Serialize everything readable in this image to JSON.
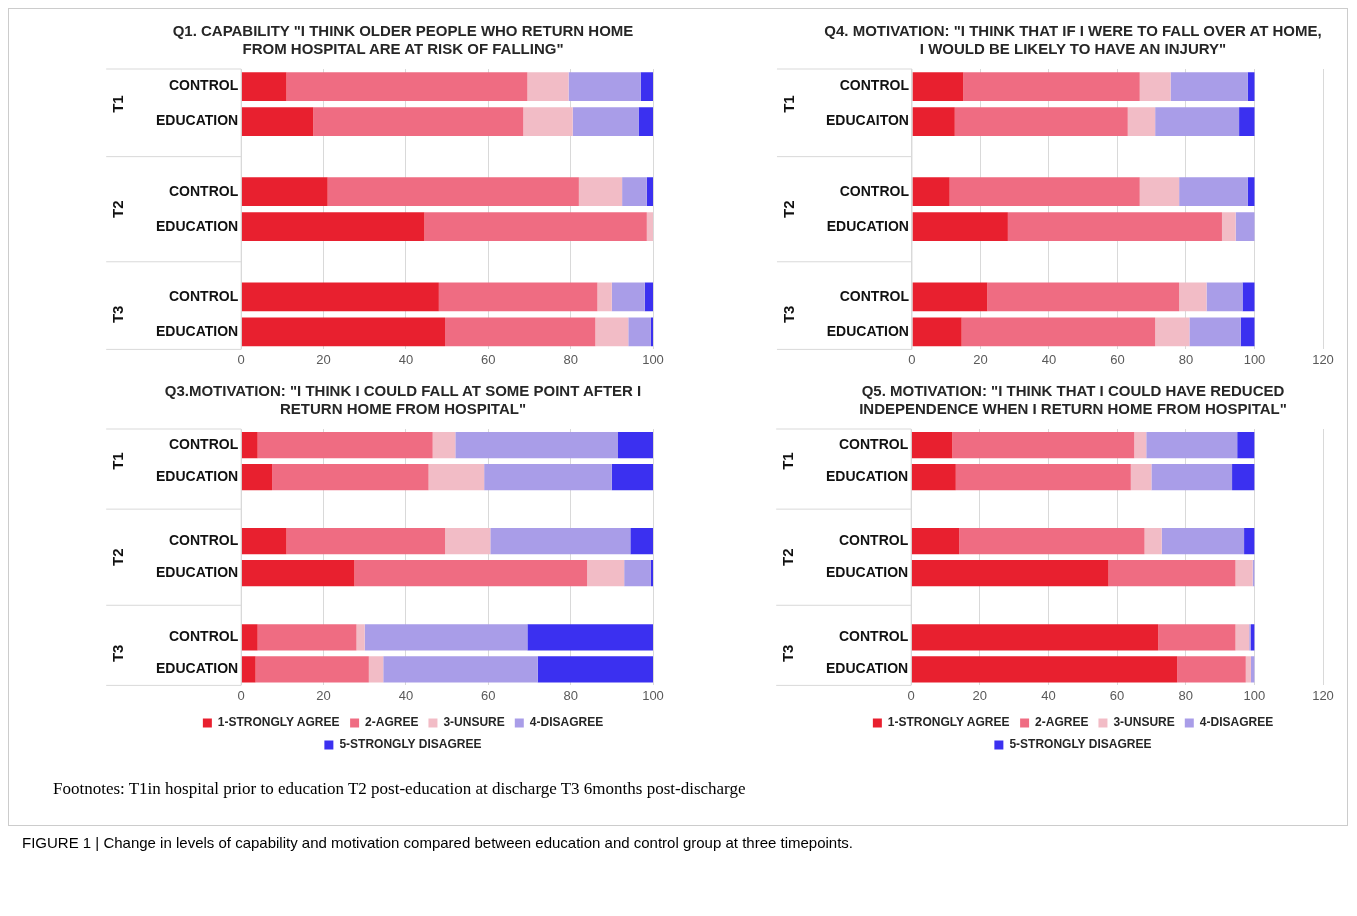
{
  "chart_data": [
    {
      "type": "bar",
      "orientation": "horizontal",
      "stacked": true,
      "title": "Q1. CAPABILITY \"I THINK OLDER PEOPLE WHO RETURN HOME FROM HOSPITAL ARE AT RISK OF FALLING\"",
      "categories": [
        "CONTROL",
        "EDUCATION",
        null,
        "CONTROL",
        "EDUCATION",
        null,
        "CONTROL",
        "EDUCATION"
      ],
      "xlim": [
        0,
        100
      ],
      "xticks": [
        0,
        20,
        40,
        60,
        80,
        100
      ],
      "grid": "x",
      "legend": false,
      "annotations": [
        "T1",
        "T2",
        "T3"
      ],
      "series": [
        {
          "color": "#e8202f",
          "values": [
            11,
            17.5,
            null,
            21,
            44.5,
            null,
            48,
            49.5
          ]
        },
        {
          "color": "#ef6c82",
          "values": [
            58.5,
            51,
            null,
            61,
            54,
            null,
            38.5,
            36.5
          ]
        },
        {
          "color": "#f2bcc6",
          "values": [
            10,
            12,
            null,
            10.5,
            1.5,
            null,
            3.5,
            8
          ]
        },
        {
          "color": "#a99de8",
          "values": [
            17.5,
            16,
            null,
            6,
            0,
            null,
            8,
            5.5
          ]
        },
        {
          "color": "#3b30f0",
          "values": [
            3,
            3.5,
            null,
            1.5,
            0,
            null,
            2,
            0.5
          ]
        }
      ]
    },
    {
      "type": "bar",
      "orientation": "horizontal",
      "stacked": true,
      "title": "Q4. MOTIVATION: \"I THINK THAT IF I WERE TO FALL OVER AT HOME, I WOULD BE LIKELY TO HAVE AN INJURY\"",
      "categories": [
        "CONTROL",
        "EDUCAITON",
        null,
        "CONTROL",
        "EDUCATION",
        null,
        "CONTROL",
        "EDUCATION"
      ],
      "xlim": [
        0,
        120
      ],
      "xticks": [
        0,
        20,
        40,
        60,
        80,
        100,
        120
      ],
      "grid": "x",
      "legend": false,
      "annotations": [
        "T1",
        "T2",
        "T3"
      ],
      "series": [
        {
          "color": "#e8202f",
          "values": [
            15,
            12.5,
            null,
            11,
            28,
            null,
            22,
            14.5
          ]
        },
        {
          "color": "#ef6c82",
          "values": [
            51.5,
            50.5,
            null,
            55.5,
            62.5,
            null,
            56,
            56.5
          ]
        },
        {
          "color": "#f2bcc6",
          "values": [
            9,
            8,
            null,
            11.5,
            4,
            null,
            8,
            10
          ]
        },
        {
          "color": "#a99de8",
          "values": [
            22.5,
            24.5,
            null,
            20,
            5.5,
            null,
            10.5,
            15
          ]
        },
        {
          "color": "#3b30f0",
          "values": [
            2,
            4.5,
            null,
            2,
            0,
            null,
            3.5,
            4
          ]
        }
      ]
    },
    {
      "type": "bar",
      "orientation": "horizontal",
      "stacked": true,
      "title": "Q3.MOTIVATION: \"I THINK I COULD FALL AT SOME POINT AFTER I RETURN HOME FROM HOSPITAL\"",
      "categories": [
        "CONTROL",
        "EDUCATION",
        null,
        "CONTROL",
        "EDUCATION",
        null,
        "CONTROL",
        "EDUCATION"
      ],
      "xlim": [
        0,
        100
      ],
      "xticks": [
        0,
        20,
        40,
        60,
        80,
        100
      ],
      "grid": "x",
      "legend": "bottom",
      "annotations": [
        "T1",
        "T2",
        "T3"
      ],
      "series": [
        {
          "name": "1-STRONGLY AGREE",
          "color": "#e8202f",
          "values": [
            4,
            7.5,
            null,
            11,
            27.5,
            null,
            4,
            3.5
          ]
        },
        {
          "name": "2-AGREE",
          "color": "#ef6c82",
          "values": [
            42.5,
            38,
            null,
            38.5,
            56.5,
            null,
            24,
            27.5
          ]
        },
        {
          "name": "3-UNSURE",
          "color": "#f2bcc6",
          "values": [
            5.5,
            13.5,
            null,
            11,
            9,
            null,
            2,
            3.5
          ]
        },
        {
          "name": "4-DISAGREE",
          "color": "#a99de8",
          "values": [
            39.5,
            31,
            null,
            34,
            6.5,
            null,
            39.5,
            37.5
          ]
        },
        {
          "name": "5-STRONGLY DISAGREE",
          "color": "#3b30f0",
          "values": [
            8.5,
            10,
            null,
            5.5,
            0.5,
            null,
            30.5,
            28
          ]
        }
      ]
    },
    {
      "type": "bar",
      "orientation": "horizontal",
      "stacked": true,
      "title": "Q5. MOTIVATION: \"I THINK THAT I COULD HAVE REDUCED INDEPENDENCE WHEN I RETURN HOME FROM HOSPITAL\"",
      "categories": [
        "CONTROL",
        "EDUCATION",
        null,
        "CONTROL",
        "EDUCATION",
        null,
        "CONTROL",
        "EDUCATION"
      ],
      "xlim": [
        0,
        120
      ],
      "xticks": [
        0,
        20,
        40,
        60,
        80,
        100,
        120
      ],
      "grid": "x",
      "legend": "bottom",
      "annotations": [
        "T1",
        "T2",
        "T3",
        "Footnotes: T1in hospital prior to education T2 post-education at discharge T3 6months post-discharge",
        "FIGURE 1 | Change in levels of capability and motivation compared between education and control group at three timepoints."
      ],
      "series": [
        {
          "name": "1-STRONGLY AGREE",
          "color": "#e8202f",
          "values": [
            12,
            13,
            null,
            14,
            57.5,
            null,
            72,
            77.5
          ]
        },
        {
          "name": "2-AGREE",
          "color": "#ef6c82",
          "values": [
            53,
            51,
            null,
            54,
            37,
            null,
            22.5,
            20
          ]
        },
        {
          "name": "3-UNSURE",
          "color": "#f2bcc6",
          "values": [
            3.5,
            6,
            null,
            5,
            5,
            null,
            4,
            1.5
          ]
        },
        {
          "name": "4-DISAGREE",
          "color": "#a99de8",
          "values": [
            26.5,
            23.5,
            null,
            24,
            0.5,
            null,
            0.5,
            1
          ]
        },
        {
          "name": "5-STRONGLY DISAGREE",
          "color": "#3b30f0",
          "values": [
            5,
            6.5,
            null,
            3,
            0,
            null,
            1,
            0
          ]
        }
      ]
    }
  ]
}
